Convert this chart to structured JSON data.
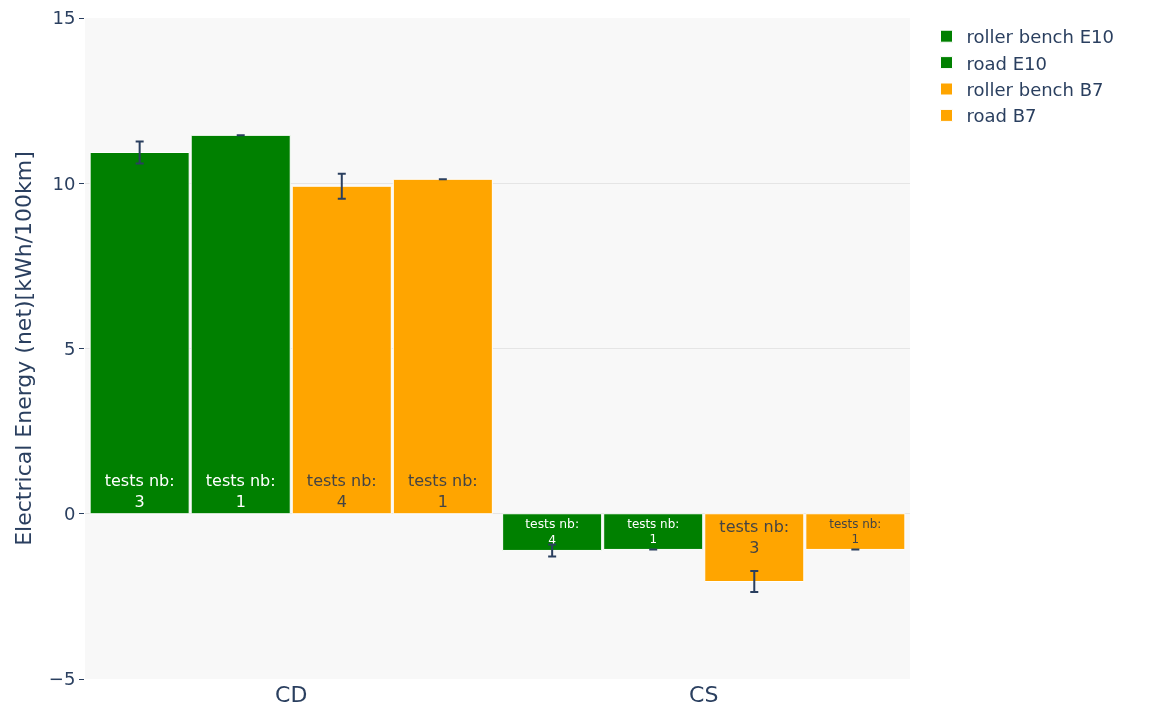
{
  "chart_data": {
    "type": "bar",
    "ylabel": "Electrical Energy (net)[kWh/100km]",
    "categories": [
      "CD",
      "CS"
    ],
    "series": [
      {
        "name": "roller bench E10",
        "color": "#008000",
        "values": [
          10.93,
          -1.11
        ],
        "errors": [
          0.33,
          0.18
        ]
      },
      {
        "name": "road E10",
        "color": "#008000",
        "values": [
          11.45,
          -1.08
        ],
        "errors": [
          0,
          0
        ]
      },
      {
        "name": "roller bench B7",
        "color": "#ffa500",
        "values": [
          9.91,
          -2.05
        ],
        "errors": [
          0.38,
          0.32
        ]
      },
      {
        "name": "road B7",
        "color": "#ffa500",
        "values": [
          10.12,
          -1.08
        ],
        "errors": [
          0,
          0
        ]
      }
    ],
    "annotations": [
      "tests nb: 3",
      "tests nb: 1",
      "tests nb: 4",
      "tests nb: 1",
      "tests nb: 4",
      "tests nb: 1",
      "tests nb: 3",
      "tests nb: 1"
    ],
    "ylim": [
      -5,
      15
    ],
    "yticks": [
      -5,
      0,
      5,
      10,
      15
    ],
    "grid": "y",
    "legend": "top right"
  }
}
